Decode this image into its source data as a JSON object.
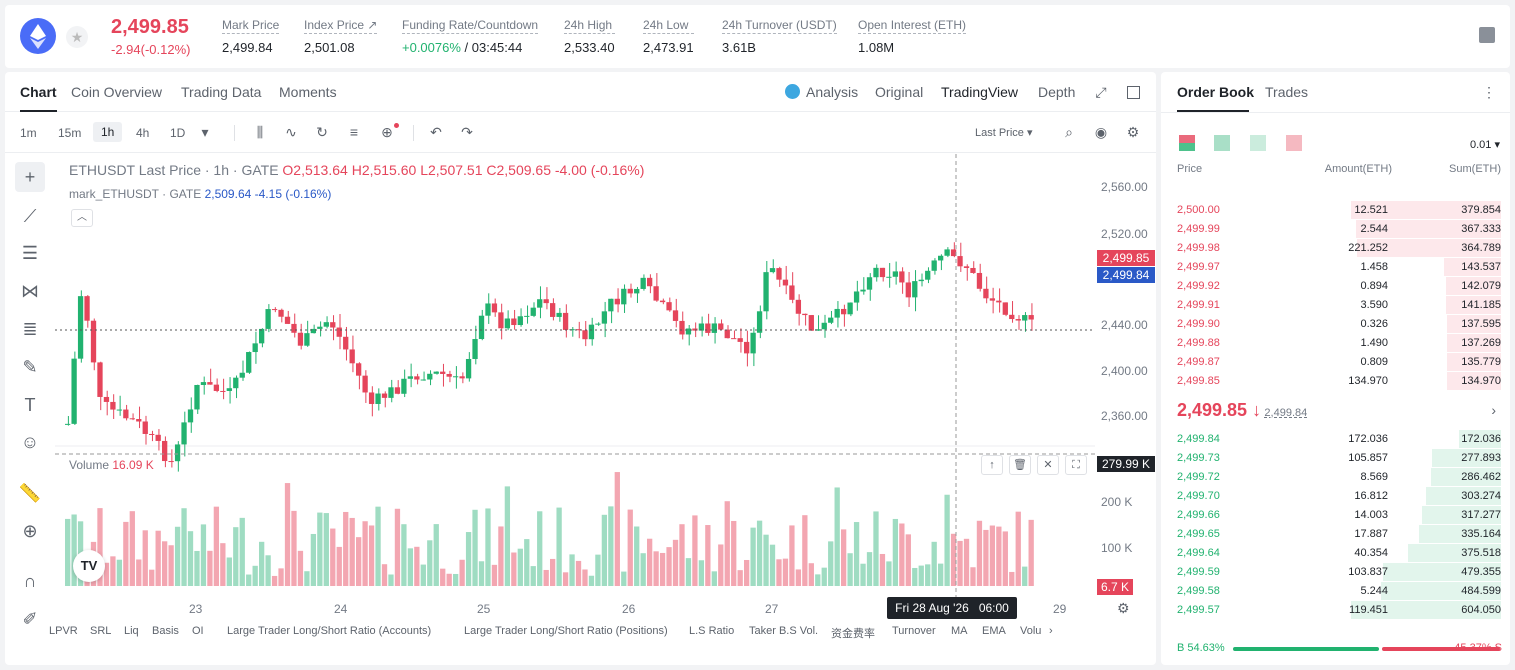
{
  "header": {
    "last_price": "2,499.85",
    "change": "-2.94(-0.12%)",
    "stats": [
      {
        "label": "Mark Price",
        "value": "2,499.84"
      },
      {
        "label": "Index Price ↗",
        "value": "2,501.08"
      },
      {
        "label": "Funding Rate/Countdown",
        "value_green": "+0.0076%",
        "value_rest": " / 03:45:44"
      },
      {
        "label": "24h High",
        "value": "2,533.40"
      },
      {
        "label": "24h Low",
        "value": "2,473.91"
      },
      {
        "label": "24h Turnover (USDT)",
        "value": "3.61B"
      },
      {
        "label": "Open Interest (ETH)",
        "value": "1.08M"
      }
    ]
  },
  "tabs": {
    "chart": "Chart",
    "coin_overview": "Coin Overview",
    "trading_data": "Trading Data",
    "moments": "Moments",
    "analysis": "Analysis",
    "original": "Original",
    "tradingview": "TradingView",
    "depth": "Depth"
  },
  "toolbar": {
    "tf1": "1m",
    "tf2": "15m",
    "tf3": "1h",
    "tf4": "4h",
    "tf5": "1D",
    "price_type": "Last Price ▾"
  },
  "legend": {
    "symbol": "ETHUSDT Last Price · 1h · GATE",
    "o": "O2,513.64",
    "h": "H2,515.60",
    "l": "L2,507.51",
    "c": "C2,509.65",
    "chg": "-4.00 (-0.16%)",
    "mark": "mark_ETHUSDT · GATE",
    "mark_val": "2,509.64",
    "mark_chg": "-4.15 (-0.16%)"
  },
  "volume": {
    "label": "Volume",
    "value": "16.09 K",
    "badge": "279.99 K",
    "badge2": "6.7 K"
  },
  "y_ticks": [
    "2,560.00",
    "2,520.00",
    "2,440.00",
    "2,400.00",
    "2,360.00",
    "200 K",
    "100 K"
  ],
  "price_badges": {
    "last": "2,499.85",
    "mark": "2,499.84"
  },
  "x_ticks": [
    "23",
    "24",
    "25",
    "26",
    "27",
    "29"
  ],
  "crosshair": {
    "date": "Fri 28 Aug '26",
    "time": "06:00"
  },
  "indicators": [
    "LPVR",
    "SRL",
    "Liq",
    "Basis",
    "OI",
    "Large Trader Long/Short Ratio (Accounts)",
    "Large Trader Long/Short Ratio (Positions)",
    "L.S Ratio",
    "Taker B.S Vol.",
    "资金费率",
    "Turnover",
    "MA",
    "EMA",
    "Volu"
  ],
  "orderbook": {
    "tab1": "Order Book",
    "tab2": "Trades",
    "precision": "0.01 ▾",
    "col_price": "Price",
    "col_amount": "Amount(ETH)",
    "col_sum": "Sum(ETH)",
    "asks": [
      {
        "p": "2,500.00",
        "a": "12.521",
        "s": "379.854",
        "d": 1.0
      },
      {
        "p": "2,499.99",
        "a": "2.544",
        "s": "367.333",
        "d": 0.97
      },
      {
        "p": "2,499.98",
        "a": "221.252",
        "s": "364.789",
        "d": 0.96
      },
      {
        "p": "2,499.97",
        "a": "1.458",
        "s": "143.537",
        "d": 0.38
      },
      {
        "p": "2,499.92",
        "a": "0.894",
        "s": "142.079",
        "d": 0.37
      },
      {
        "p": "2,499.91",
        "a": "3.590",
        "s": "141.185",
        "d": 0.37
      },
      {
        "p": "2,499.90",
        "a": "0.326",
        "s": "137.595",
        "d": 0.36
      },
      {
        "p": "2,499.88",
        "a": "1.490",
        "s": "137.269",
        "d": 0.36
      },
      {
        "p": "2,499.87",
        "a": "0.809",
        "s": "135.779",
        "d": 0.36
      },
      {
        "p": "2,499.85",
        "a": "134.970",
        "s": "134.970",
        "d": 0.36
      }
    ],
    "mid_price": "2,499.85 ↓",
    "mid_mark": "2,499.84",
    "bids": [
      {
        "p": "2,499.84",
        "a": "172.036",
        "s": "172.036",
        "d": 0.28
      },
      {
        "p": "2,499.73",
        "a": "105.857",
        "s": "277.893",
        "d": 0.46
      },
      {
        "p": "2,499.72",
        "a": "8.569",
        "s": "286.462",
        "d": 0.47
      },
      {
        "p": "2,499.70",
        "a": "16.812",
        "s": "303.274",
        "d": 0.5
      },
      {
        "p": "2,499.66",
        "a": "14.003",
        "s": "317.277",
        "d": 0.53
      },
      {
        "p": "2,499.65",
        "a": "17.887",
        "s": "335.164",
        "d": 0.55
      },
      {
        "p": "2,499.64",
        "a": "40.354",
        "s": "375.518",
        "d": 0.62
      },
      {
        "p": "2,499.59",
        "a": "103.837",
        "s": "479.355",
        "d": 0.79
      },
      {
        "p": "2,499.58",
        "a": "5.244",
        "s": "484.599",
        "d": 0.8
      },
      {
        "p": "2,499.57",
        "a": "119.451",
        "s": "604.050",
        "d": 1.0
      }
    ],
    "buy": "B 54.63%",
    "sell": "45.37% S",
    "buy_ratio": 0.5463
  },
  "colors": {
    "up": "#21b26f",
    "down": "#e5455b",
    "mark": "#2a59c7"
  }
}
